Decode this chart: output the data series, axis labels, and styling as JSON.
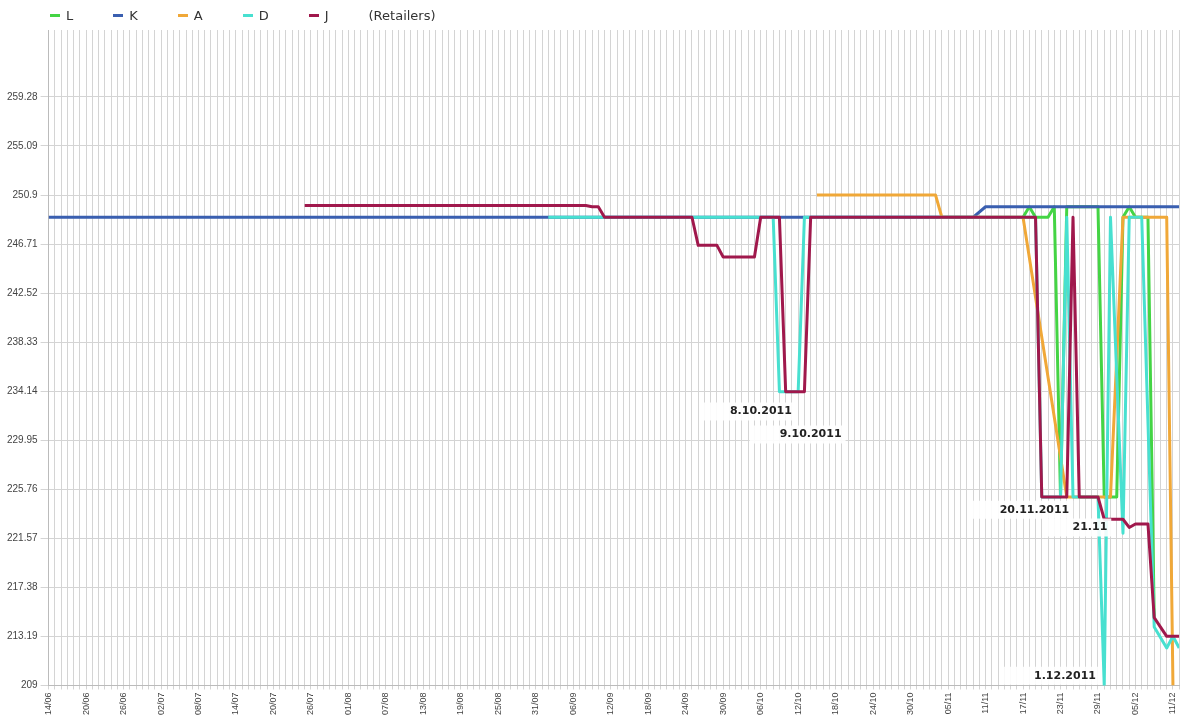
{
  "chart_data": {
    "type": "line",
    "legend_title": "(Retailers)",
    "legend": "top left",
    "grid": true,
    "marker": "none",
    "line_style": "solid",
    "xlim": [
      "2011-06-14",
      "2011-12-12"
    ],
    "ylim": [
      209,
      265
    ],
    "yticks": [
      209,
      213.19,
      217.38,
      221.57,
      225.76,
      229.95,
      234.14,
      238.33,
      242.52,
      246.71,
      250.9,
      255.09,
      259.28
    ],
    "xticks": [
      {
        "value": "2011-06-14",
        "label": "14/06"
      },
      {
        "value": "2011-06-15",
        "label": null
      },
      {
        "value": "2011-06-16",
        "label": null
      },
      {
        "value": "2011-06-17",
        "label": null
      },
      {
        "value": "2011-06-18",
        "label": null
      },
      {
        "value": "2011-06-19",
        "label": null
      },
      {
        "value": "2011-06-20",
        "label": "20/06"
      },
      {
        "value": "2011-06-21",
        "label": null
      },
      {
        "value": "2011-06-22",
        "label": null
      },
      {
        "value": "2011-06-23",
        "label": null
      },
      {
        "value": "2011-06-24",
        "label": null
      },
      {
        "value": "2011-06-25",
        "label": null
      },
      {
        "value": "2011-06-26",
        "label": "26/06"
      },
      {
        "value": "2011-06-27",
        "label": null
      },
      {
        "value": "2011-06-28",
        "label": null
      },
      {
        "value": "2011-06-29",
        "label": null
      },
      {
        "value": "2011-06-30",
        "label": null
      },
      {
        "value": "2011-07-01",
        "label": null
      },
      {
        "value": "2011-07-02",
        "label": "02/07"
      },
      {
        "value": "2011-07-03",
        "label": null
      },
      {
        "value": "2011-07-04",
        "label": null
      },
      {
        "value": "2011-07-05",
        "label": null
      },
      {
        "value": "2011-07-06",
        "label": null
      },
      {
        "value": "2011-07-07",
        "label": null
      },
      {
        "value": "2011-07-08",
        "label": "08/07"
      },
      {
        "value": "2011-07-09",
        "label": null
      },
      {
        "value": "2011-07-10",
        "label": null
      },
      {
        "value": "2011-07-11",
        "label": null
      },
      {
        "value": "2011-07-12",
        "label": null
      },
      {
        "value": "2011-07-13",
        "label": null
      },
      {
        "value": "2011-07-14",
        "label": "14/07"
      },
      {
        "value": "2011-07-15",
        "label": null
      },
      {
        "value": "2011-07-16",
        "label": null
      },
      {
        "value": "2011-07-17",
        "label": null
      },
      {
        "value": "2011-07-18",
        "label": null
      },
      {
        "value": "2011-07-19",
        "label": null
      },
      {
        "value": "2011-07-20",
        "label": "20/07"
      },
      {
        "value": "2011-07-21",
        "label": null
      },
      {
        "value": "2011-07-22",
        "label": null
      },
      {
        "value": "2011-07-23",
        "label": null
      },
      {
        "value": "2011-07-24",
        "label": null
      },
      {
        "value": "2011-07-25",
        "label": null
      },
      {
        "value": "2011-07-26",
        "label": "26/07"
      },
      {
        "value": "2011-07-27",
        "label": null
      },
      {
        "value": "2011-07-28",
        "label": null
      },
      {
        "value": "2011-07-29",
        "label": null
      },
      {
        "value": "2011-07-30",
        "label": null
      },
      {
        "value": "2011-07-31",
        "label": null
      },
      {
        "value": "2011-08-01",
        "label": "01/08"
      },
      {
        "value": "2011-08-02",
        "label": null
      },
      {
        "value": "2011-08-03",
        "label": null
      },
      {
        "value": "2011-08-04",
        "label": null
      },
      {
        "value": "2011-08-05",
        "label": null
      },
      {
        "value": "2011-08-06",
        "label": null
      },
      {
        "value": "2011-08-07",
        "label": "07/08"
      },
      {
        "value": "2011-08-08",
        "label": null
      },
      {
        "value": "2011-08-09",
        "label": null
      },
      {
        "value": "2011-08-10",
        "label": null
      },
      {
        "value": "2011-08-11",
        "label": null
      },
      {
        "value": "2011-08-12",
        "label": null
      },
      {
        "value": "2011-08-13",
        "label": "13/08"
      },
      {
        "value": "2011-08-14",
        "label": null
      },
      {
        "value": "2011-08-15",
        "label": null
      },
      {
        "value": "2011-08-16",
        "label": null
      },
      {
        "value": "2011-08-17",
        "label": null
      },
      {
        "value": "2011-08-18",
        "label": null
      },
      {
        "value": "2011-08-19",
        "label": "19/08"
      },
      {
        "value": "2011-08-20",
        "label": null
      },
      {
        "value": "2011-08-21",
        "label": null
      },
      {
        "value": "2011-08-22",
        "label": null
      },
      {
        "value": "2011-08-23",
        "label": null
      },
      {
        "value": "2011-08-24",
        "label": null
      },
      {
        "value": "2011-08-25",
        "label": "25/08"
      },
      {
        "value": "2011-08-26",
        "label": null
      },
      {
        "value": "2011-08-27",
        "label": null
      },
      {
        "value": "2011-08-28",
        "label": null
      },
      {
        "value": "2011-08-29",
        "label": null
      },
      {
        "value": "2011-08-30",
        "label": null
      },
      {
        "value": "2011-08-31",
        "label": "31/08"
      },
      {
        "value": "2011-09-01",
        "label": null
      },
      {
        "value": "2011-09-02",
        "label": null
      },
      {
        "value": "2011-09-03",
        "label": null
      },
      {
        "value": "2011-09-04",
        "label": null
      },
      {
        "value": "2011-09-05",
        "label": null
      },
      {
        "value": "2011-09-06",
        "label": "06/09"
      },
      {
        "value": "2011-09-07",
        "label": null
      },
      {
        "value": "2011-09-08",
        "label": null
      },
      {
        "value": "2011-09-09",
        "label": null
      },
      {
        "value": "2011-09-10",
        "label": null
      },
      {
        "value": "2011-09-11",
        "label": null
      },
      {
        "value": "2011-09-12",
        "label": "12/09"
      },
      {
        "value": "2011-09-13",
        "label": null
      },
      {
        "value": "2011-09-14",
        "label": null
      },
      {
        "value": "2011-09-15",
        "label": null
      },
      {
        "value": "2011-09-16",
        "label": null
      },
      {
        "value": "2011-09-17",
        "label": null
      },
      {
        "value": "2011-09-18",
        "label": "18/09"
      },
      {
        "value": "2011-09-19",
        "label": null
      },
      {
        "value": "2011-09-20",
        "label": null
      },
      {
        "value": "2011-09-21",
        "label": null
      },
      {
        "value": "2011-09-22",
        "label": null
      },
      {
        "value": "2011-09-23",
        "label": null
      },
      {
        "value": "2011-09-24",
        "label": "24/09"
      },
      {
        "value": "2011-09-25",
        "label": null
      },
      {
        "value": "2011-09-26",
        "label": null
      },
      {
        "value": "2011-09-27",
        "label": null
      },
      {
        "value": "2011-09-28",
        "label": null
      },
      {
        "value": "2011-09-29",
        "label": null
      },
      {
        "value": "2011-09-30",
        "label": "30/09"
      },
      {
        "value": "2011-10-01",
        "label": null
      },
      {
        "value": "2011-10-02",
        "label": null
      },
      {
        "value": "2011-10-03",
        "label": null
      },
      {
        "value": "2011-10-04",
        "label": null
      },
      {
        "value": "2011-10-05",
        "label": null
      },
      {
        "value": "2011-10-06",
        "label": "06/10"
      },
      {
        "value": "2011-10-07",
        "label": null
      },
      {
        "value": "2011-10-08",
        "label": null
      },
      {
        "value": "2011-10-09",
        "label": null
      },
      {
        "value": "2011-10-10",
        "label": null
      },
      {
        "value": "2011-10-11",
        "label": null
      },
      {
        "value": "2011-10-12",
        "label": "12/10"
      },
      {
        "value": "2011-10-13",
        "label": null
      },
      {
        "value": "2011-10-14",
        "label": null
      },
      {
        "value": "2011-10-15",
        "label": null
      },
      {
        "value": "2011-10-16",
        "label": null
      },
      {
        "value": "2011-10-17",
        "label": null
      },
      {
        "value": "2011-10-18",
        "label": "18/10"
      },
      {
        "value": "2011-10-19",
        "label": null
      },
      {
        "value": "2011-10-20",
        "label": null
      },
      {
        "value": "2011-10-21",
        "label": null
      },
      {
        "value": "2011-10-22",
        "label": null
      },
      {
        "value": "2011-10-23",
        "label": null
      },
      {
        "value": "2011-10-24",
        "label": "24/10"
      },
      {
        "value": "2011-10-25",
        "label": null
      },
      {
        "value": "2011-10-26",
        "label": null
      },
      {
        "value": "2011-10-27",
        "label": null
      },
      {
        "value": "2011-10-28",
        "label": null
      },
      {
        "value": "2011-10-29",
        "label": null
      },
      {
        "value": "2011-10-30",
        "label": "30/10"
      },
      {
        "value": "2011-10-31",
        "label": null
      },
      {
        "value": "2011-11-01",
        "label": null
      },
      {
        "value": "2011-11-02",
        "label": null
      },
      {
        "value": "2011-11-03",
        "label": null
      },
      {
        "value": "2011-11-04",
        "label": null
      },
      {
        "value": "2011-11-05",
        "label": "05/11"
      },
      {
        "value": "2011-11-06",
        "label": null
      },
      {
        "value": "2011-11-07",
        "label": null
      },
      {
        "value": "2011-11-08",
        "label": null
      },
      {
        "value": "2011-11-09",
        "label": null
      },
      {
        "value": "2011-11-10",
        "label": null
      },
      {
        "value": "2011-11-11",
        "label": "11/11"
      },
      {
        "value": "2011-11-12",
        "label": null
      },
      {
        "value": "2011-11-13",
        "label": null
      },
      {
        "value": "2011-11-14",
        "label": null
      },
      {
        "value": "2011-11-15",
        "label": null
      },
      {
        "value": "2011-11-16",
        "label": null
      },
      {
        "value": "2011-11-17",
        "label": "17/11"
      },
      {
        "value": "2011-11-18",
        "label": null
      },
      {
        "value": "2011-11-19",
        "label": null
      },
      {
        "value": "2011-11-20",
        "label": null
      },
      {
        "value": "2011-11-21",
        "label": null
      },
      {
        "value": "2011-11-22",
        "label": null
      },
      {
        "value": "2011-11-23",
        "label": "23/11"
      },
      {
        "value": "2011-11-24",
        "label": null
      },
      {
        "value": "2011-11-25",
        "label": null
      },
      {
        "value": "2011-11-26",
        "label": null
      },
      {
        "value": "2011-11-27",
        "label": null
      },
      {
        "value": "2011-11-28",
        "label": null
      },
      {
        "value": "2011-11-29",
        "label": "29/11"
      },
      {
        "value": "2011-11-30",
        "label": null
      },
      {
        "value": "2011-12-01",
        "label": null
      },
      {
        "value": "2011-12-02",
        "label": null
      },
      {
        "value": "2011-12-03",
        "label": null
      },
      {
        "value": "2011-12-04",
        "label": null
      },
      {
        "value": "2011-12-05",
        "label": "05/12"
      },
      {
        "value": "2011-12-06",
        "label": null
      },
      {
        "value": "2011-12-07",
        "label": null
      },
      {
        "value": "2011-12-08",
        "label": null
      },
      {
        "value": "2011-12-09",
        "label": null
      },
      {
        "value": "2011-12-10",
        "label": null
      },
      {
        "value": "2011-12-11",
        "label": "11/12"
      },
      {
        "value": "2011-12-12",
        "label": null
      }
    ],
    "series": [
      {
        "name": "L",
        "color": "#44d444",
        "x": [
          "2011-11-17",
          "2011-11-18",
          "2011-11-19",
          "2011-11-21",
          "2011-11-22",
          "2011-11-23",
          "2011-11-24",
          "2011-11-29",
          "2011-11-30",
          "2011-12-02",
          "2011-12-03",
          "2011-12-04",
          "2011-12-05",
          "2011-12-07",
          "2011-12-08"
        ],
        "values": [
          249.0,
          249.9,
          249.0,
          249.0,
          249.9,
          225.1,
          249.9,
          249.9,
          225.1,
          225.1,
          249.0,
          249.9,
          249.0,
          249.0,
          214.8
        ]
      },
      {
        "name": "K",
        "color": "#3a5fb0",
        "x": [
          "2011-06-14",
          "2011-11-09",
          "2011-11-11",
          "2011-12-12"
        ],
        "values": [
          249.0,
          249.0,
          249.9,
          249.9
        ]
      },
      {
        "name": "A",
        "color": "#f0a838",
        "x": [
          "2011-10-15",
          "2011-11-03",
          "2011-11-04",
          "2011-11-17",
          "2011-11-24",
          "2011-12-01",
          "2011-12-03",
          "2011-12-10",
          "2011-12-11"
        ],
        "values": [
          250.9,
          250.9,
          249.0,
          249.0,
          225.1,
          225.1,
          249.0,
          249.0,
          209.0
        ]
      },
      {
        "name": "D",
        "color": "#48e0d0",
        "x": [
          "2011-09-02",
          "2011-10-08",
          "2011-10-09",
          "2011-10-12",
          "2011-10-13",
          "2011-11-19",
          "2011-11-20",
          "2011-11-23",
          "2011-11-24",
          "2011-11-25",
          "2011-11-29",
          "2011-11-30",
          "2011-12-01",
          "2011-12-03",
          "2011-12-04",
          "2011-12-06",
          "2011-12-08",
          "2011-12-10",
          "2011-12-11",
          "2011-12-12"
        ],
        "values": [
          249.0,
          249.0,
          234.1,
          234.1,
          249.0,
          249.0,
          225.1,
          225.1,
          249.0,
          225.1,
          225.1,
          209.0,
          249.0,
          222.0,
          249.0,
          249.0,
          214.0,
          212.2,
          213.2,
          212.2
        ]
      },
      {
        "name": "J",
        "color": "#a0184c",
        "x": [
          "2011-07-25",
          "2011-09-08",
          "2011-09-09",
          "2011-09-10",
          "2011-09-11",
          "2011-09-25",
          "2011-09-26",
          "2011-09-29",
          "2011-09-30",
          "2011-10-05",
          "2011-10-06",
          "2011-10-09",
          "2011-10-10",
          "2011-10-13",
          "2011-10-14",
          "2011-11-19",
          "2011-11-20",
          "2011-11-24",
          "2011-11-25",
          "2011-11-26",
          "2011-11-29",
          "2011-11-30",
          "2011-12-03",
          "2011-12-04",
          "2011-12-05",
          "2011-12-07",
          "2011-12-08",
          "2011-12-10",
          "2011-12-12"
        ],
        "values": [
          250.0,
          250.0,
          249.9,
          249.9,
          249.0,
          249.0,
          246.6,
          246.6,
          245.6,
          245.6,
          249.0,
          249.0,
          234.1,
          234.1,
          249.0,
          249.0,
          225.1,
          225.1,
          249.0,
          225.1,
          225.1,
          223.2,
          223.2,
          222.5,
          222.8,
          222.8,
          214.8,
          213.2,
          213.2
        ]
      }
    ],
    "annotations": [
      "8.10.2011",
      "9.10.2011",
      "20.11.2011",
      "21.11",
      "1.12.2011"
    ]
  }
}
